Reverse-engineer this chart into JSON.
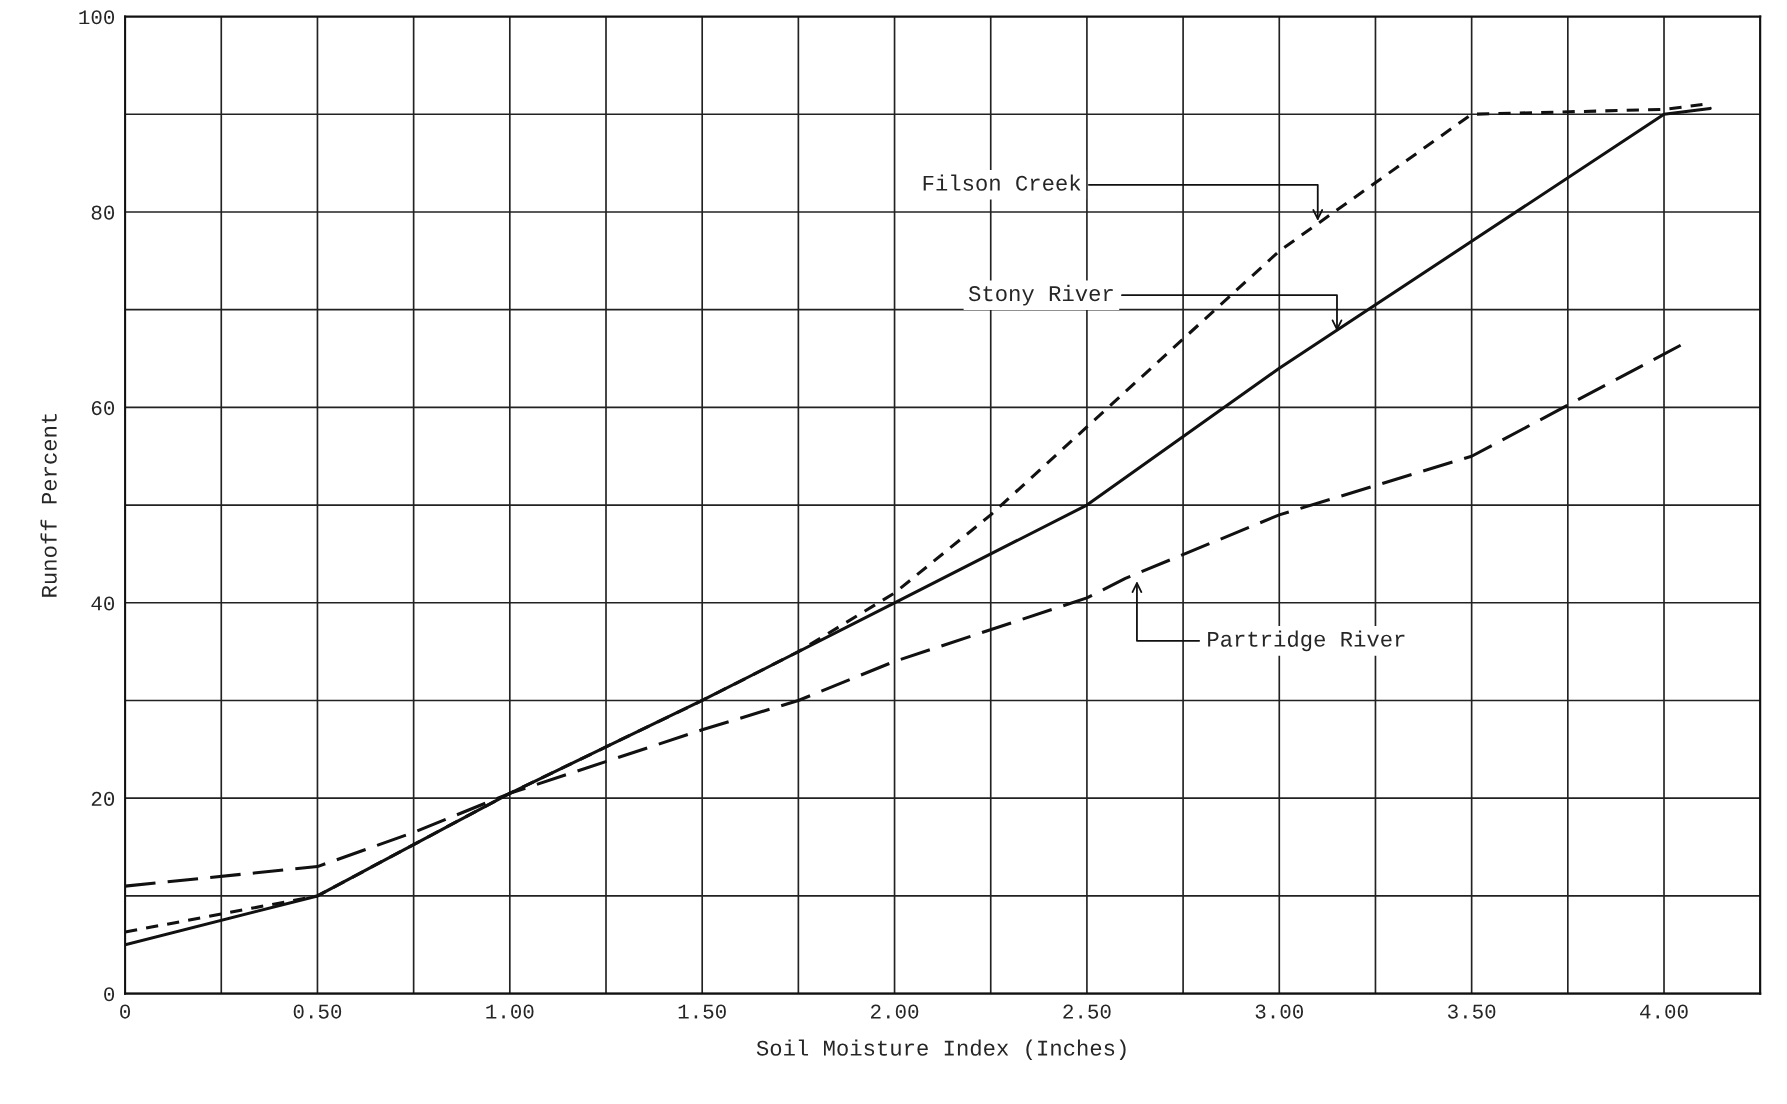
{
  "chart_data": {
    "type": "line",
    "xlabel": "Soil Moisture Index (Inches)",
    "ylabel": "Runoff Percent",
    "xlim": [
      0,
      4.25
    ],
    "ylim": [
      0,
      100
    ],
    "xticks": [
      0,
      {
        "value": 0.25,
        "label": null
      },
      {
        "value": 0.5,
        "label": "0.50"
      },
      {
        "value": 0.75,
        "label": null
      },
      {
        "value": 1.0,
        "label": "1.00"
      },
      {
        "value": 1.25,
        "label": null
      },
      {
        "value": 1.5,
        "label": "1.50"
      },
      {
        "value": 1.75,
        "label": null
      },
      {
        "value": 2.0,
        "label": "2.00"
      },
      {
        "value": 2.25,
        "label": null
      },
      {
        "value": 2.5,
        "label": "2.50"
      },
      {
        "value": 2.75,
        "label": null
      },
      {
        "value": 3.0,
        "label": "3.00"
      },
      {
        "value": 3.25,
        "label": null
      },
      {
        "value": 3.5,
        "label": "3.50"
      },
      {
        "value": 3.75,
        "label": null
      },
      {
        "value": 4.0,
        "label": "4.00"
      },
      {
        "value": 4.25,
        "label": null
      }
    ],
    "yticks": [
      0,
      {
        "value": 10,
        "label": null
      },
      20,
      {
        "value": 30,
        "label": null
      },
      40,
      {
        "value": 50,
        "label": null
      },
      60,
      {
        "value": 70,
        "label": null
      },
      80,
      {
        "value": 90,
        "label": null
      },
      100
    ],
    "grid": true,
    "marker": "none",
    "series": [
      {
        "color": "#111111",
        "line_style": "dashed",
        "x": [
          0,
          0.5,
          1.0,
          1.5,
          1.75,
          2.0,
          2.25,
          2.5,
          3.0,
          3.5,
          4.0,
          4.1
        ],
        "values": [
          6.3,
          10,
          20.5,
          30,
          35,
          41,
          49,
          58,
          76,
          90,
          90.5,
          91
        ]
      },
      {
        "color": "#111111",
        "line_style": "solid",
        "x": [
          0,
          0.5,
          1.0,
          1.5,
          2.0,
          2.5,
          3.0,
          3.5,
          4.0,
          4.12
        ],
        "values": [
          5,
          10,
          20.5,
          30,
          40,
          50,
          64,
          77,
          90,
          90.6
        ]
      },
      {
        "color": "#111111",
        "line_style": "dashed",
        "x": [
          0,
          0.5,
          0.75,
          1.0,
          1.5,
          1.75,
          2.0,
          2.5,
          2.6,
          3.0,
          3.5,
          4.05
        ],
        "values": [
          11,
          13,
          16.5,
          20.5,
          27,
          30,
          34,
          40.5,
          42.5,
          49,
          55,
          66.5
        ]
      }
    ],
    "annotations": [
      {
        "text": "Filson Creek",
        "x": 3.1,
        "y": 78.8
      },
      {
        "text": "Stony River",
        "x": 3.15,
        "y": 67.5
      },
      {
        "text": "Partridge River",
        "x": 2.63,
        "y": 42.5
      }
    ]
  }
}
